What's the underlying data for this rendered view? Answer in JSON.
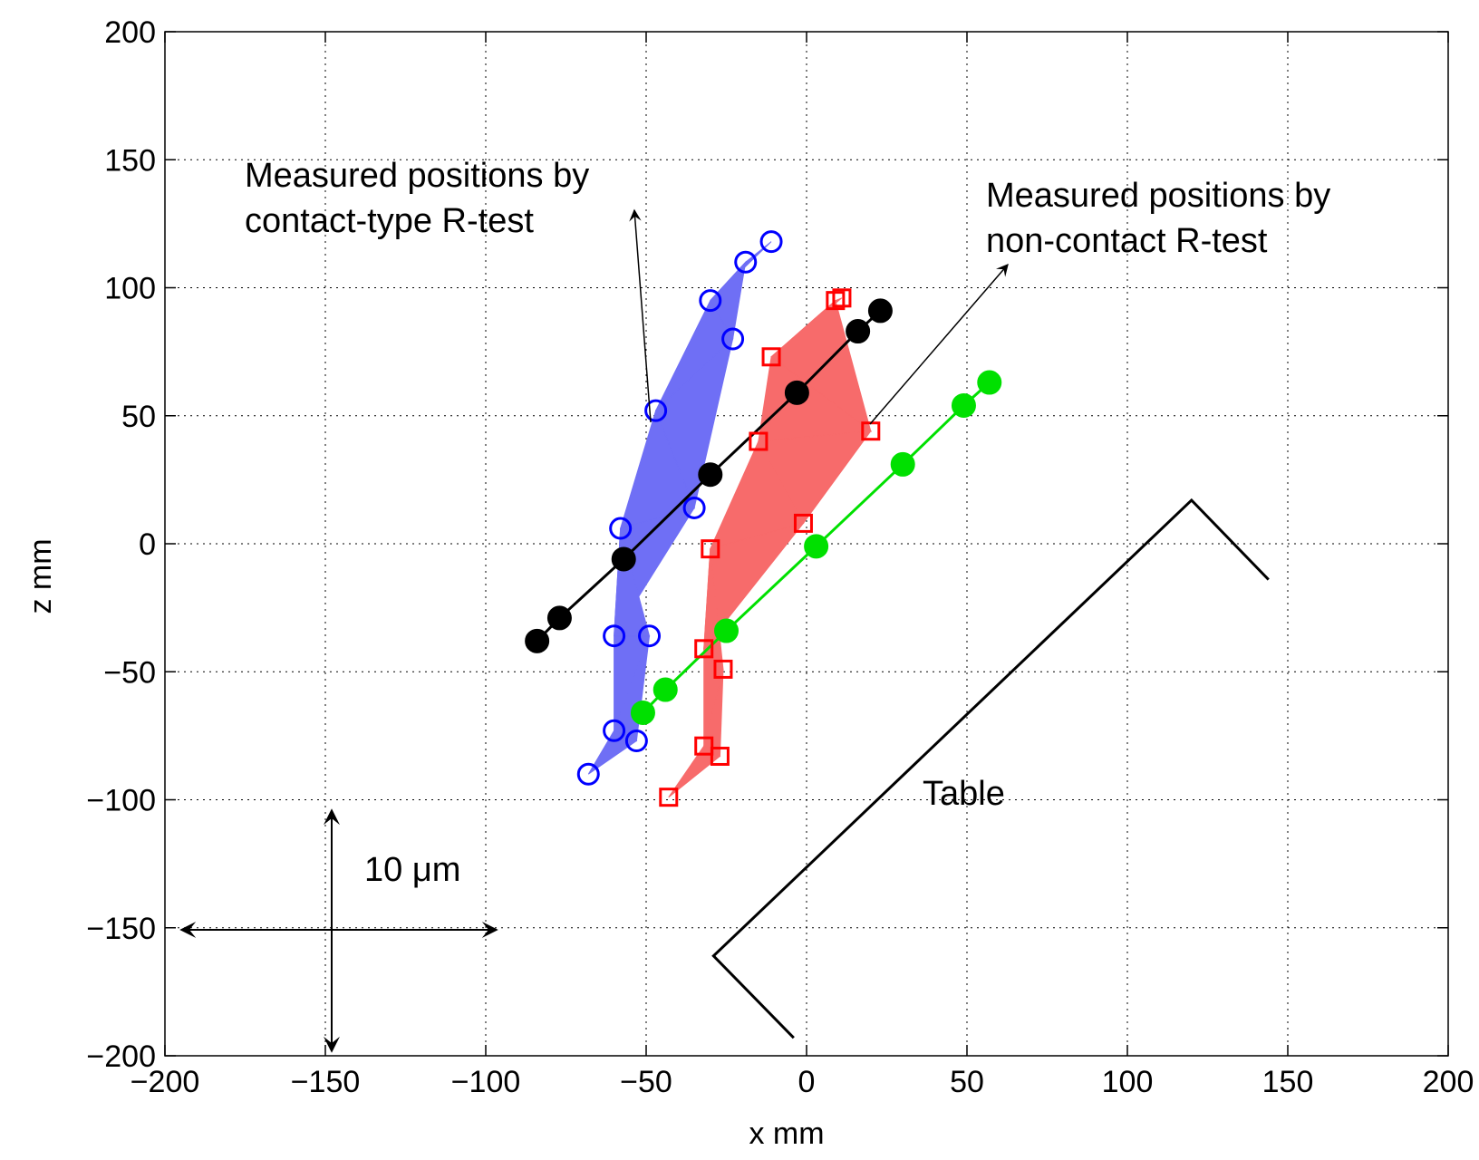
{
  "chart_data": {
    "type": "scatter",
    "title": "",
    "xlabel": "x mm",
    "ylabel": "z mm",
    "xlim": [
      -200,
      200
    ],
    "ylim": [
      -200,
      200
    ],
    "xticks": [
      -200,
      -150,
      -100,
      -50,
      0,
      50,
      100,
      150,
      200
    ],
    "yticks": [
      -200,
      -150,
      -100,
      -50,
      0,
      50,
      100,
      150,
      200
    ],
    "xtick_labels": [
      "−200",
      "−150",
      "−100",
      "−50",
      "0",
      "50",
      "100",
      "150",
      "200"
    ],
    "ytick_labels": [
      "−200",
      "−150",
      "−100",
      "−50",
      "0",
      "50",
      "100",
      "150",
      "200"
    ],
    "grid": true,
    "colors": {
      "contact_fill": "#6f6ff5",
      "contact_marker": "#0000ff",
      "noncontact_fill": "#f76b6b",
      "noncontact_marker": "#ff0000",
      "nominal_black": "#000000",
      "nominal_green": "#00e000"
    },
    "series": [
      {
        "marker": "open-circle",
        "color": "#0000ff",
        "x": [
          -11,
          -19,
          -30,
          -23,
          -47,
          -35,
          -58,
          -60,
          -49,
          -60,
          -53,
          -68
        ],
        "y": [
          118,
          110,
          95,
          80,
          52,
          14,
          6,
          -36,
          -36,
          -73,
          -77,
          -90
        ]
      },
      {
        "marker": "open-square",
        "color": "#ff0000",
        "x": [
          11,
          9,
          -11,
          20,
          -15,
          -1,
          -30,
          -32,
          -26,
          -32,
          -27,
          -43
        ],
        "y": [
          96,
          95,
          73,
          44,
          40,
          8,
          -2,
          -41,
          -49,
          -79,
          -83,
          -99
        ]
      },
      {
        "marker": "filled-circle",
        "line": true,
        "color": "#000000",
        "x": [
          -84,
          -77,
          -57,
          -30,
          -3,
          16,
          23
        ],
        "y": [
          -38,
          -29,
          -6,
          27,
          59,
          83,
          91
        ]
      },
      {
        "marker": "filled-circle",
        "line": true,
        "color": "#00e000",
        "x": [
          -51,
          -44,
          -25,
          3,
          30,
          49,
          57
        ],
        "y": [
          -66,
          -57,
          -34,
          -1,
          31,
          54,
          63
        ]
      }
    ],
    "table_outline": {
      "x": [
        144,
        120,
        -29,
        -4
      ],
      "y": [
        -14,
        17,
        -161,
        -193
      ]
    },
    "annotations": {
      "contact_label": [
        "Measured positions by",
        "contact-type R-test"
      ],
      "noncontact_label": [
        "Measured positions by",
        "non-contact R-test"
      ],
      "table_label": "Table",
      "scale_label": "10 μm"
    }
  }
}
